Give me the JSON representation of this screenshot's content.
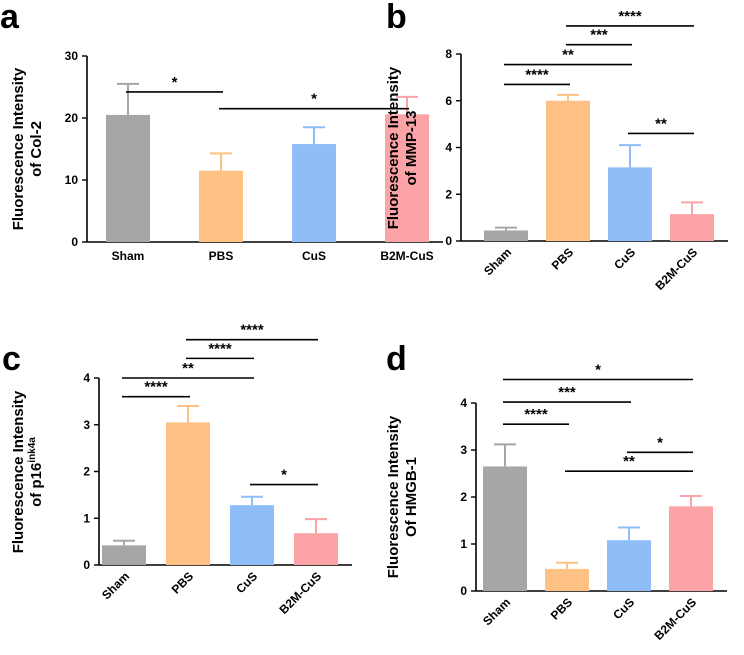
{
  "figure": {
    "colors": {
      "Sham": "#a6a6a6",
      "PBS": "#fdc283",
      "CuS": "#8ebdf8",
      "B2M-CuS": "#fba3a6"
    }
  },
  "chart_data": [
    {
      "type": "bar",
      "panel": "a",
      "ylabel_line1": "Fluorescence Intensity",
      "ylabel_line2": "of Col-2",
      "categories": [
        "Sham",
        "PBS",
        "CuS",
        "B2M-CuS"
      ],
      "values": [
        20.5,
        11.5,
        15.8,
        20.6
      ],
      "errors": [
        5.0,
        2.8,
        2.7,
        2.8
      ],
      "ylim": [
        0,
        30
      ],
      "yticks": [
        "0",
        "10",
        "20",
        "30"
      ],
      "yticks_values": [
        0,
        10,
        20,
        30
      ],
      "tilted_labels": false,
      "comparisons": [
        {
          "from": 0,
          "to": 1,
          "label": "*",
          "y": 24.2
        },
        {
          "from": 1,
          "to": 3,
          "label": "*",
          "y": 21.5
        }
      ]
    },
    {
      "type": "bar",
      "panel": "b",
      "ylabel_line1": "Fluorescence Intensity",
      "ylabel_line2": "of MMP-13",
      "categories": [
        "Sham",
        "PBS",
        "CuS",
        "B2M-CuS"
      ],
      "values": [
        0.45,
        6.0,
        3.15,
        1.15
      ],
      "errors": [
        0.12,
        0.25,
        0.95,
        0.5
      ],
      "ylim": [
        0,
        8
      ],
      "yticks": [
        "0",
        "2",
        "4",
        "6",
        "8"
      ],
      "yticks_values": [
        0,
        2,
        4,
        6,
        8
      ],
      "tilted_labels": true,
      "comparisons": [
        {
          "from": 0,
          "to": 1,
          "label": "****",
          "y": 6.7
        },
        {
          "from": 0,
          "to": 2,
          "label": "**",
          "y": 7.55
        },
        {
          "from": 1,
          "to": 2,
          "label": "***",
          "y": 8.4
        },
        {
          "from": 1,
          "to": 3,
          "label": "****",
          "y": 9.2
        },
        {
          "from": 2,
          "to": 3,
          "label": "**",
          "y": 4.6
        }
      ]
    },
    {
      "type": "bar",
      "panel": "c",
      "ylabel_line1": "Fluorescence Intensity",
      "ylabel_line2": "of p16",
      "ylabel_sup": "ink4a",
      "categories": [
        "Sham",
        "PBS",
        "CuS",
        "B2M-CuS"
      ],
      "values": [
        0.42,
        3.05,
        1.28,
        0.68
      ],
      "errors": [
        0.1,
        0.35,
        0.18,
        0.3
      ],
      "ylim": [
        0,
        4
      ],
      "yticks": [
        "0",
        "1",
        "2",
        "3",
        "4"
      ],
      "yticks_values": [
        0,
        1,
        2,
        3,
        4
      ],
      "tilted_labels": true,
      "comparisons": [
        {
          "from": 0,
          "to": 1,
          "label": "****",
          "y": 3.6
        },
        {
          "from": 0,
          "to": 2,
          "label": "**",
          "y": 4.0
        },
        {
          "from": 1,
          "to": 2,
          "label": "****",
          "y": 4.42
        },
        {
          "from": 1,
          "to": 3,
          "label": "****",
          "y": 4.82
        },
        {
          "from": 2,
          "to": 3,
          "label": "*",
          "y": 1.72
        }
      ]
    },
    {
      "type": "bar",
      "panel": "d",
      "ylabel_line1": "Fluorescence Intensity",
      "ylabel_line2": "Of HMGB-1",
      "categories": [
        "Sham",
        "PBS",
        "CuS",
        "B2M-CuS"
      ],
      "values": [
        2.65,
        0.47,
        1.08,
        1.8
      ],
      "errors": [
        0.47,
        0.13,
        0.27,
        0.22
      ],
      "ylim": [
        0,
        4
      ],
      "yticks": [
        "0",
        "1",
        "2",
        "3",
        "4"
      ],
      "yticks_values": [
        0,
        1,
        2,
        3,
        4
      ],
      "tilted_labels": true,
      "comparisons": [
        {
          "from": 0,
          "to": 1,
          "label": "****",
          "y": 3.55
        },
        {
          "from": 0,
          "to": 2,
          "label": "***",
          "y": 4.02
        },
        {
          "from": 0,
          "to": 3,
          "label": "*",
          "y": 4.5
        },
        {
          "from": 1,
          "to": 3,
          "label": "**",
          "y": 2.55
        },
        {
          "from": 2,
          "to": 3,
          "label": "*",
          "y": 2.95
        }
      ]
    }
  ]
}
